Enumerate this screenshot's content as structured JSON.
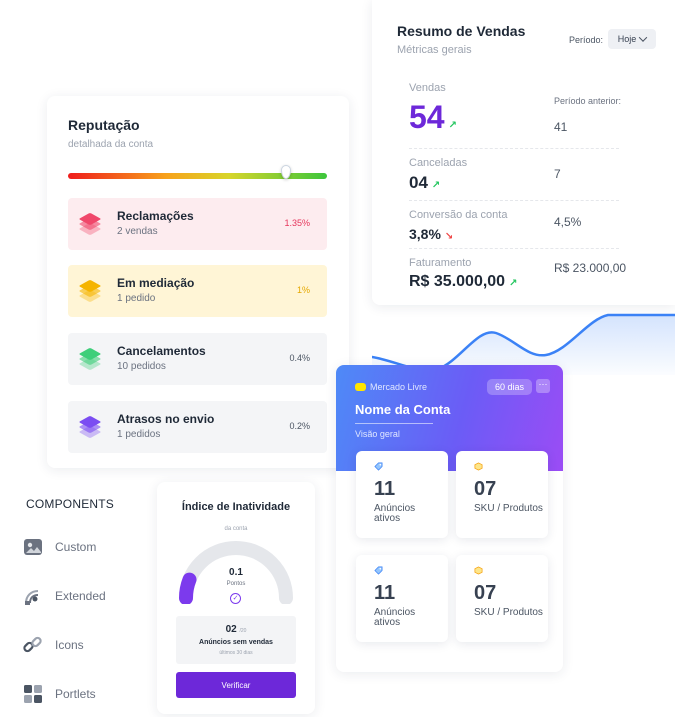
{
  "sales_summary": {
    "title": "Resumo de Vendas",
    "subtitle": "Métricas gerais",
    "period_label": "Período:",
    "period_value": "Hoje",
    "metrics": [
      {
        "label": "Vendas",
        "value": "54",
        "trend": "up",
        "previous_label": "Período anterior:",
        "previous_value": "41"
      },
      {
        "label": "Canceladas",
        "value": "04",
        "trend": "up",
        "previous_value": "7"
      },
      {
        "label": "Conversão da conta",
        "value": "3,8%",
        "trend": "down",
        "previous_value": "4,5%"
      },
      {
        "label": "Faturamento",
        "value": "R$ 35.000,00",
        "trend": "up",
        "previous_value": "R$ 23.000,00"
      }
    ]
  },
  "reputation": {
    "title": "Reputação",
    "subtitle": "detalhada da conta",
    "level_fraction": 0.84,
    "items": [
      {
        "name": "Reclamações",
        "detail": "2 vendas",
        "percent": "1.35%",
        "icon": "layers-icon",
        "icon_color": "#f0476a",
        "bg_color": "#fdecef",
        "percent_color": "#e5355b"
      },
      {
        "name": "Em mediação",
        "detail": "1 pedido",
        "percent": "1%",
        "icon": "layers-icon",
        "icon_color": "#f5b400",
        "bg_color": "#fff5d6",
        "percent_color": "#e5a800"
      },
      {
        "name": "Cancelamentos",
        "detail": "10 pedidos",
        "percent": "0.4%",
        "icon": "layers-icon",
        "icon_color": "#3ecf7a",
        "bg_color": "#f4f5f7",
        "percent_color": "#4b5563"
      },
      {
        "name": "Atrasos no envio",
        "detail": "1 pedidos",
        "percent": "0.2%",
        "icon": "layers-icon",
        "icon_color": "#7b4df2",
        "bg_color": "#f4f5f7",
        "percent_color": "#4b5563"
      }
    ]
  },
  "account": {
    "marketplace": "Mercado Livre",
    "days_badge": "60 dias",
    "more_icon": "more-icon",
    "name": "Nome da Conta",
    "subtitle": "Visão geral",
    "stats": [
      {
        "value": "11",
        "label": "Anúncios ativos",
        "icon": "tag-icon"
      },
      {
        "value": "07",
        "label": "SKU / Produtos",
        "icon": "box-icon"
      },
      {
        "value": "11",
        "label": "Anúncios ativos",
        "icon": "tag-icon"
      },
      {
        "value": "07",
        "label": "SKU / Produtos",
        "icon": "box-icon"
      }
    ]
  },
  "components": {
    "title": "COMPONENTS",
    "items": [
      {
        "label": "Custom",
        "icon": "image-icon"
      },
      {
        "label": "Extended",
        "icon": "satellite-icon"
      },
      {
        "label": "Icons",
        "icon": "link-icon"
      },
      {
        "label": "Portlets",
        "icon": "grid-icon"
      }
    ]
  },
  "inactivity": {
    "title": "Índice de Inatividade",
    "subtitle": "da conta",
    "score": "0.1",
    "score_label": "Pontos",
    "gauge_fraction": 0.12,
    "count": "02",
    "count_total": "/20",
    "count_label": "Anúncios sem vendas",
    "count_period": "últimos 30 dias",
    "button_label": "Verificar"
  },
  "colors": {
    "brand_purple": "#6d28d9",
    "accent_purple": "#7c3aed",
    "chart_line": "#3b82f6",
    "up": "#22c55e",
    "down": "#ef4444"
  }
}
